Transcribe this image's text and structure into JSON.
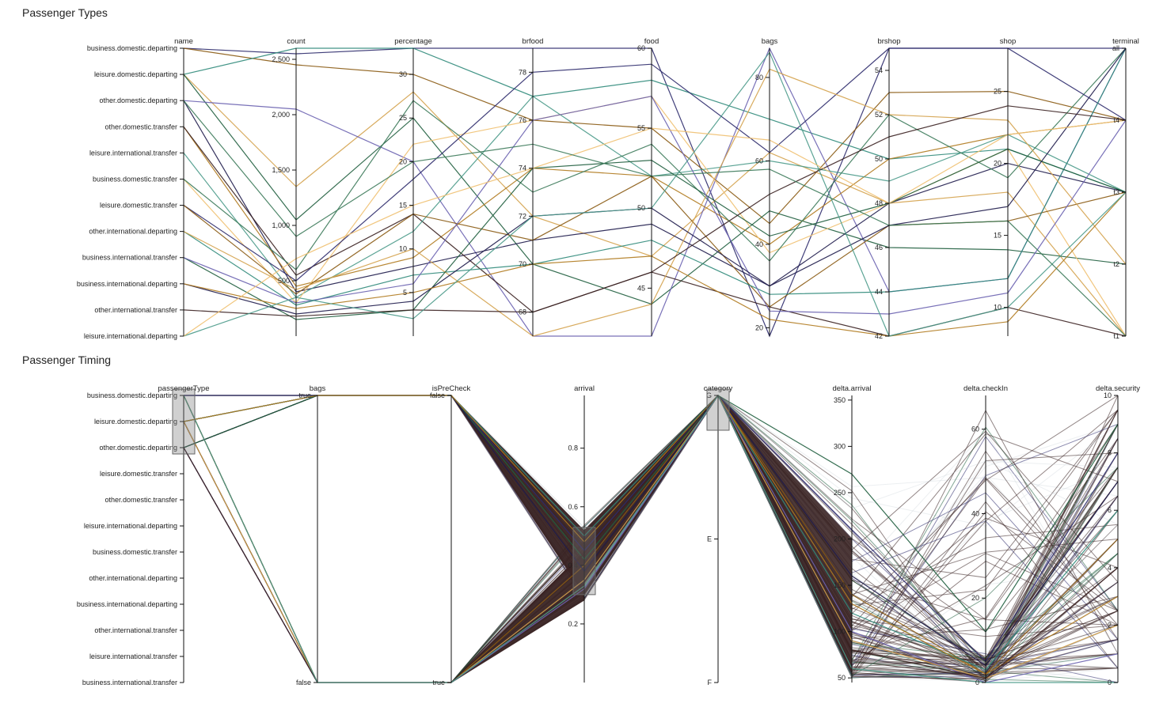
{
  "sections": [
    {
      "title": "Passenger Types"
    },
    {
      "title": "Passenger Timing"
    }
  ],
  "colors": {
    "palette": [
      "#2c2a6b",
      "#8a5a12",
      "#2f8a7a",
      "#d4a24c",
      "#1f5e3e",
      "#6a62b0",
      "#1e1b4b",
      "#b07a1e",
      "#3a2020",
      "#4a9a8a",
      "#f0c070",
      "#3c7a5a"
    ],
    "dense": "#3a2424",
    "faint": "#c8d2d8"
  },
  "chart_data": [
    {
      "type": "parallel_coordinates",
      "title": "Passenger Types",
      "dimensions": [
        {
          "name": "name",
          "type": "categorical",
          "categories": [
            "business.domestic.departing",
            "leisure.domestic.departing",
            "other.domestic.departing",
            "other.domestic.transfer",
            "leisure.international.transfer",
            "business.domestic.transfer",
            "leisure.domestic.transfer",
            "other.international.departing",
            "business.international.transfer",
            "business.international.departing",
            "other.international.transfer",
            "leisure.international.departing"
          ]
        },
        {
          "name": "count",
          "type": "numeric",
          "range": [
            0,
            2600
          ],
          "ticks": [
            {
              "v": 500,
              "label": "500"
            },
            {
              "v": 1000,
              "label": "1,000"
            },
            {
              "v": 1500,
              "label": "1,500"
            },
            {
              "v": 2000,
              "label": "2,000"
            },
            {
              "v": 2500,
              "label": "2,500"
            }
          ]
        },
        {
          "name": "percentage",
          "type": "numeric",
          "range": [
            0,
            33
          ],
          "ticks": [
            {
              "v": 5,
              "label": "5"
            },
            {
              "v": 10,
              "label": "10"
            },
            {
              "v": 15,
              "label": "15"
            },
            {
              "v": 20,
              "label": "20"
            },
            {
              "v": 25,
              "label": "25"
            },
            {
              "v": 30,
              "label": "30"
            }
          ]
        },
        {
          "name": "brfood",
          "type": "numeric",
          "range": [
            67,
            79
          ],
          "ticks": [
            {
              "v": 68,
              "label": "68"
            },
            {
              "v": 70,
              "label": "70"
            },
            {
              "v": 72,
              "label": "72"
            },
            {
              "v": 74,
              "label": "74"
            },
            {
              "v": 76,
              "label": "76"
            },
            {
              "v": 78,
              "label": "78"
            }
          ]
        },
        {
          "name": "food",
          "type": "numeric",
          "range": [
            42,
            60
          ],
          "ticks": [
            {
              "v": 45,
              "label": "45"
            },
            {
              "v": 50,
              "label": "50"
            },
            {
              "v": 55,
              "label": "55"
            },
            {
              "v": 60,
              "label": "60"
            }
          ]
        },
        {
          "name": "bags",
          "type": "numeric",
          "range": [
            18,
            87
          ],
          "ticks": [
            {
              "v": 20,
              "label": "20"
            },
            {
              "v": 40,
              "label": "40"
            },
            {
              "v": 60,
              "label": "60"
            },
            {
              "v": 80,
              "label": "80"
            }
          ]
        },
        {
          "name": "brshop",
          "type": "numeric",
          "range": [
            42,
            55
          ],
          "ticks": [
            {
              "v": 42,
              "label": "42"
            },
            {
              "v": 44,
              "label": "44"
            },
            {
              "v": 46,
              "label": "46"
            },
            {
              "v": 48,
              "label": "48"
            },
            {
              "v": 50,
              "label": "50"
            },
            {
              "v": 52,
              "label": "52"
            },
            {
              "v": 54,
              "label": "54"
            }
          ]
        },
        {
          "name": "shop",
          "type": "numeric",
          "range": [
            8,
            28
          ],
          "ticks": [
            {
              "v": 10,
              "label": "10"
            },
            {
              "v": 15,
              "label": "15"
            },
            {
              "v": 20,
              "label": "20"
            },
            {
              "v": 25,
              "label": "25"
            }
          ]
        },
        {
          "name": "terminal",
          "type": "categorical",
          "categories": [
            "all",
            "t4",
            "t3",
            "t2",
            "t1"
          ]
        }
      ],
      "records": [
        [
          0,
          2550,
          33,
          79,
          60,
          18,
          55,
          28,
          "all"
        ],
        [
          0,
          2450,
          30,
          76,
          55,
          45,
          53,
          25,
          "t4"
        ],
        [
          1,
          2600,
          33,
          77,
          58,
          70,
          50,
          21,
          "t3"
        ],
        [
          1,
          1350,
          28,
          72,
          47,
          62,
          48,
          18,
          "t1"
        ],
        [
          1,
          1050,
          25,
          70,
          44,
          48,
          46,
          14,
          "t2"
        ],
        [
          2,
          2050,
          20,
          67,
          42,
          87,
          44,
          12,
          "all"
        ],
        [
          2,
          400,
          8,
          71,
          49,
          30,
          48,
          20,
          "t3"
        ],
        [
          3,
          450,
          9,
          74,
          52,
          40,
          50,
          22,
          "t4"
        ],
        [
          3,
          550,
          14,
          68,
          46,
          25,
          42,
          10,
          "t1"
        ],
        [
          4,
          350,
          12,
          77,
          52,
          60,
          49,
          22,
          "t3"
        ],
        [
          5,
          300,
          22,
          76,
          57,
          38,
          48,
          21,
          "t1"
        ],
        [
          5,
          600,
          27,
          73,
          54,
          36,
          52,
          19,
          "all"
        ],
        [
          6,
          500,
          18,
          78,
          59,
          62,
          55,
          28,
          "t4"
        ],
        [
          6,
          380,
          14,
          71,
          52,
          25,
          47,
          16,
          "t3"
        ],
        [
          7,
          280,
          7,
          70,
          48,
          28,
          44,
          12,
          "all"
        ],
        [
          7,
          420,
          10,
          67,
          44,
          82,
          52,
          23,
          "t2"
        ],
        [
          8,
          150,
          3,
          74,
          53,
          42,
          48,
          21,
          "t3"
        ],
        [
          8,
          300,
          6,
          76,
          57,
          24,
          43,
          11,
          "t4"
        ],
        [
          9,
          200,
          4,
          72,
          50,
          30,
          47,
          17,
          "all"
        ],
        [
          9,
          250,
          5,
          70,
          47,
          22,
          42,
          9,
          "t3"
        ],
        [
          10,
          180,
          3,
          68,
          46,
          52,
          51,
          24,
          "t4"
        ],
        [
          11,
          350,
          2,
          72,
          50,
          86,
          42,
          10,
          "t3"
        ],
        [
          11,
          700,
          15,
          74,
          55,
          65,
          48,
          22,
          "t4"
        ],
        [
          2,
          900,
          20,
          75,
          52,
          58,
          47,
          16,
          "t1"
        ]
      ]
    },
    {
      "type": "parallel_coordinates",
      "title": "Passenger Timing",
      "dimensions": [
        {
          "name": "passengerType",
          "type": "categorical",
          "categories": [
            "business.domestic.departing",
            "leisure.domestic.departing",
            "other.domestic.departing",
            "leisure.domestic.transfer",
            "other.domestic.transfer",
            "leisure.international.departing",
            "business.domestic.transfer",
            "other.international.departing",
            "business.international.departing",
            "other.international.transfer",
            "leisure.international.transfer",
            "business.international.transfer"
          ]
        },
        {
          "name": "bags",
          "type": "categorical",
          "categories": [
            "true",
            "false"
          ]
        },
        {
          "name": "isPreCheck",
          "type": "categorical",
          "categories": [
            "false",
            "true"
          ]
        },
        {
          "name": "arrival",
          "type": "numeric",
          "range": [
            0,
            0.98
          ],
          "ticks": [
            {
              "v": 0.2,
              "label": "0.2"
            },
            {
              "v": 0.4,
              "label": "0.4"
            },
            {
              "v": 0.6,
              "label": "0.6"
            },
            {
              "v": 0.8,
              "label": "0.8"
            }
          ]
        },
        {
          "name": "category",
          "type": "categorical",
          "categories": [
            "G",
            "E",
            "F"
          ]
        },
        {
          "name": "delta.arrival",
          "type": "numeric",
          "range": [
            45,
            355
          ],
          "ticks": [
            {
              "v": 50,
              "label": "50"
            },
            {
              "v": 100,
              "label": "100"
            },
            {
              "v": 150,
              "label": "150"
            },
            {
              "v": 200,
              "label": "200"
            },
            {
              "v": 250,
              "label": "250"
            },
            {
              "v": 300,
              "label": "300"
            },
            {
              "v": 350,
              "label": "350"
            }
          ]
        },
        {
          "name": "delta.checkIn",
          "type": "numeric",
          "range": [
            0,
            68
          ],
          "ticks": [
            {
              "v": 0,
              "label": "0"
            },
            {
              "v": 20,
              "label": "20"
            },
            {
              "v": 40,
              "label": "40"
            },
            {
              "v": 60,
              "label": "60"
            }
          ]
        },
        {
          "name": "delta.security",
          "type": "numeric",
          "range": [
            0,
            10
          ],
          "ticks": [
            {
              "v": 0,
              "label": "0"
            },
            {
              "v": 2,
              "label": "2"
            },
            {
              "v": 4,
              "label": "4"
            },
            {
              "v": 6,
              "label": "6"
            },
            {
              "v": 8,
              "label": "8"
            },
            {
              "v": 10,
              "label": "10"
            }
          ]
        }
      ],
      "brushes": [
        {
          "axis": "passengerType",
          "from": "business.domestic.departing",
          "to": "other.domestic.departing"
        },
        {
          "axis": "arrival",
          "range": [
            0.3,
            0.53
          ]
        },
        {
          "axis": "category",
          "from": "G",
          "to": "G"
        }
      ],
      "records": [
        [
          0,
          "true",
          "false",
          0.45,
          "G",
          210,
          5,
          8
        ],
        [
          0,
          "false",
          "true",
          0.4,
          "G",
          140,
          2,
          5
        ],
        [
          1,
          "true",
          "false",
          0.5,
          "G",
          120,
          3,
          6
        ],
        [
          1,
          "false",
          "true",
          0.35,
          "G",
          90,
          1,
          2
        ],
        [
          2,
          "true",
          "false",
          0.42,
          "G",
          270,
          12,
          9
        ],
        [
          2,
          "false",
          "true",
          0.32,
          "G",
          100,
          0,
          1
        ],
        [
          0,
          "true",
          "false",
          0.38,
          "G",
          160,
          4,
          7
        ],
        [
          1,
          "true",
          "false",
          0.48,
          "G",
          130,
          2,
          3
        ],
        [
          2,
          "false",
          "true",
          0.44,
          "G",
          80,
          1,
          4
        ],
        [
          0,
          "false",
          "true",
          0.33,
          "G",
          60,
          0,
          0
        ]
      ]
    }
  ]
}
